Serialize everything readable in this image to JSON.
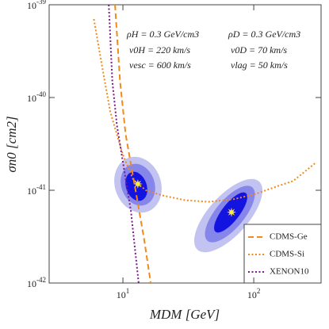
{
  "chart_data": {
    "type": "line",
    "x_label": "MDM  [GeV]",
    "y_label": "σn0  [cm2]",
    "log_x": true,
    "log_y": true,
    "xlim": [
      2.73,
      327
    ],
    "ylim": [
      1e-42,
      1e-39
    ],
    "xticks": [
      {
        "value": 10,
        "label": "10",
        "exponent": "1"
      },
      {
        "value": 100,
        "label": "10",
        "exponent": "2"
      }
    ],
    "yticks": [
      {
        "value": 1e-42,
        "label": "10",
        "exponent": "-42"
      },
      {
        "value": 1e-41,
        "label": "10",
        "exponent": "-41"
      },
      {
        "value": 1e-40,
        "label": "10",
        "exponent": "-40"
      },
      {
        "value": 1e-39,
        "label": "10",
        "exponent": "-39"
      }
    ],
    "annotations": [
      "ρH = 0.3 GeV/cm3",
      "v0H = 220 km/s",
      "vesc = 600 km/s",
      "ρD = 0.3 GeV/cm3",
      "v0D = 70 km/s",
      "vlag = 50 km/s"
    ],
    "legend": "lower right",
    "series": [
      {
        "name": "CDMS-Ge",
        "color": "#f08a1c",
        "dash": "dashed",
        "x": [
          8.7,
          9.5,
          10.5,
          12.5,
          14.5,
          16.3
        ],
        "values": [
          1e-39,
          1.5e-40,
          4e-41,
          1e-41,
          3e-42,
          1e-42
        ]
      },
      {
        "name": "CDMS-Si",
        "color": "#f08a1c",
        "dash": "dotted",
        "x": [
          6,
          7,
          8,
          10,
          12,
          15,
          20,
          30,
          45,
          70,
          100,
          150,
          200,
          300
        ],
        "values": [
          7e-40,
          2e-40,
          7e-41,
          2.4e-41,
          1.3e-41,
          1e-41,
          8.8e-42,
          7.8e-42,
          7.5e-42,
          8e-42,
          9e-42,
          1.1e-41,
          1.26e-41,
          2e-41
        ]
      },
      {
        "name": "XENON10",
        "color": "#7a1a8c",
        "dash": "dotted",
        "x": [
          7.8,
          8.3,
          9,
          10,
          11.5,
          13.2
        ],
        "values": [
          1e-39,
          1.5e-40,
          5e-41,
          2e-41,
          6e-42,
          1e-42
        ]
      }
    ],
    "best_fit": {
      "color": "#ffee33",
      "x": [
        13,
        67.6
      ],
      "values": [
        1.17e-41,
        5.8e-42
      ]
    }
  }
}
